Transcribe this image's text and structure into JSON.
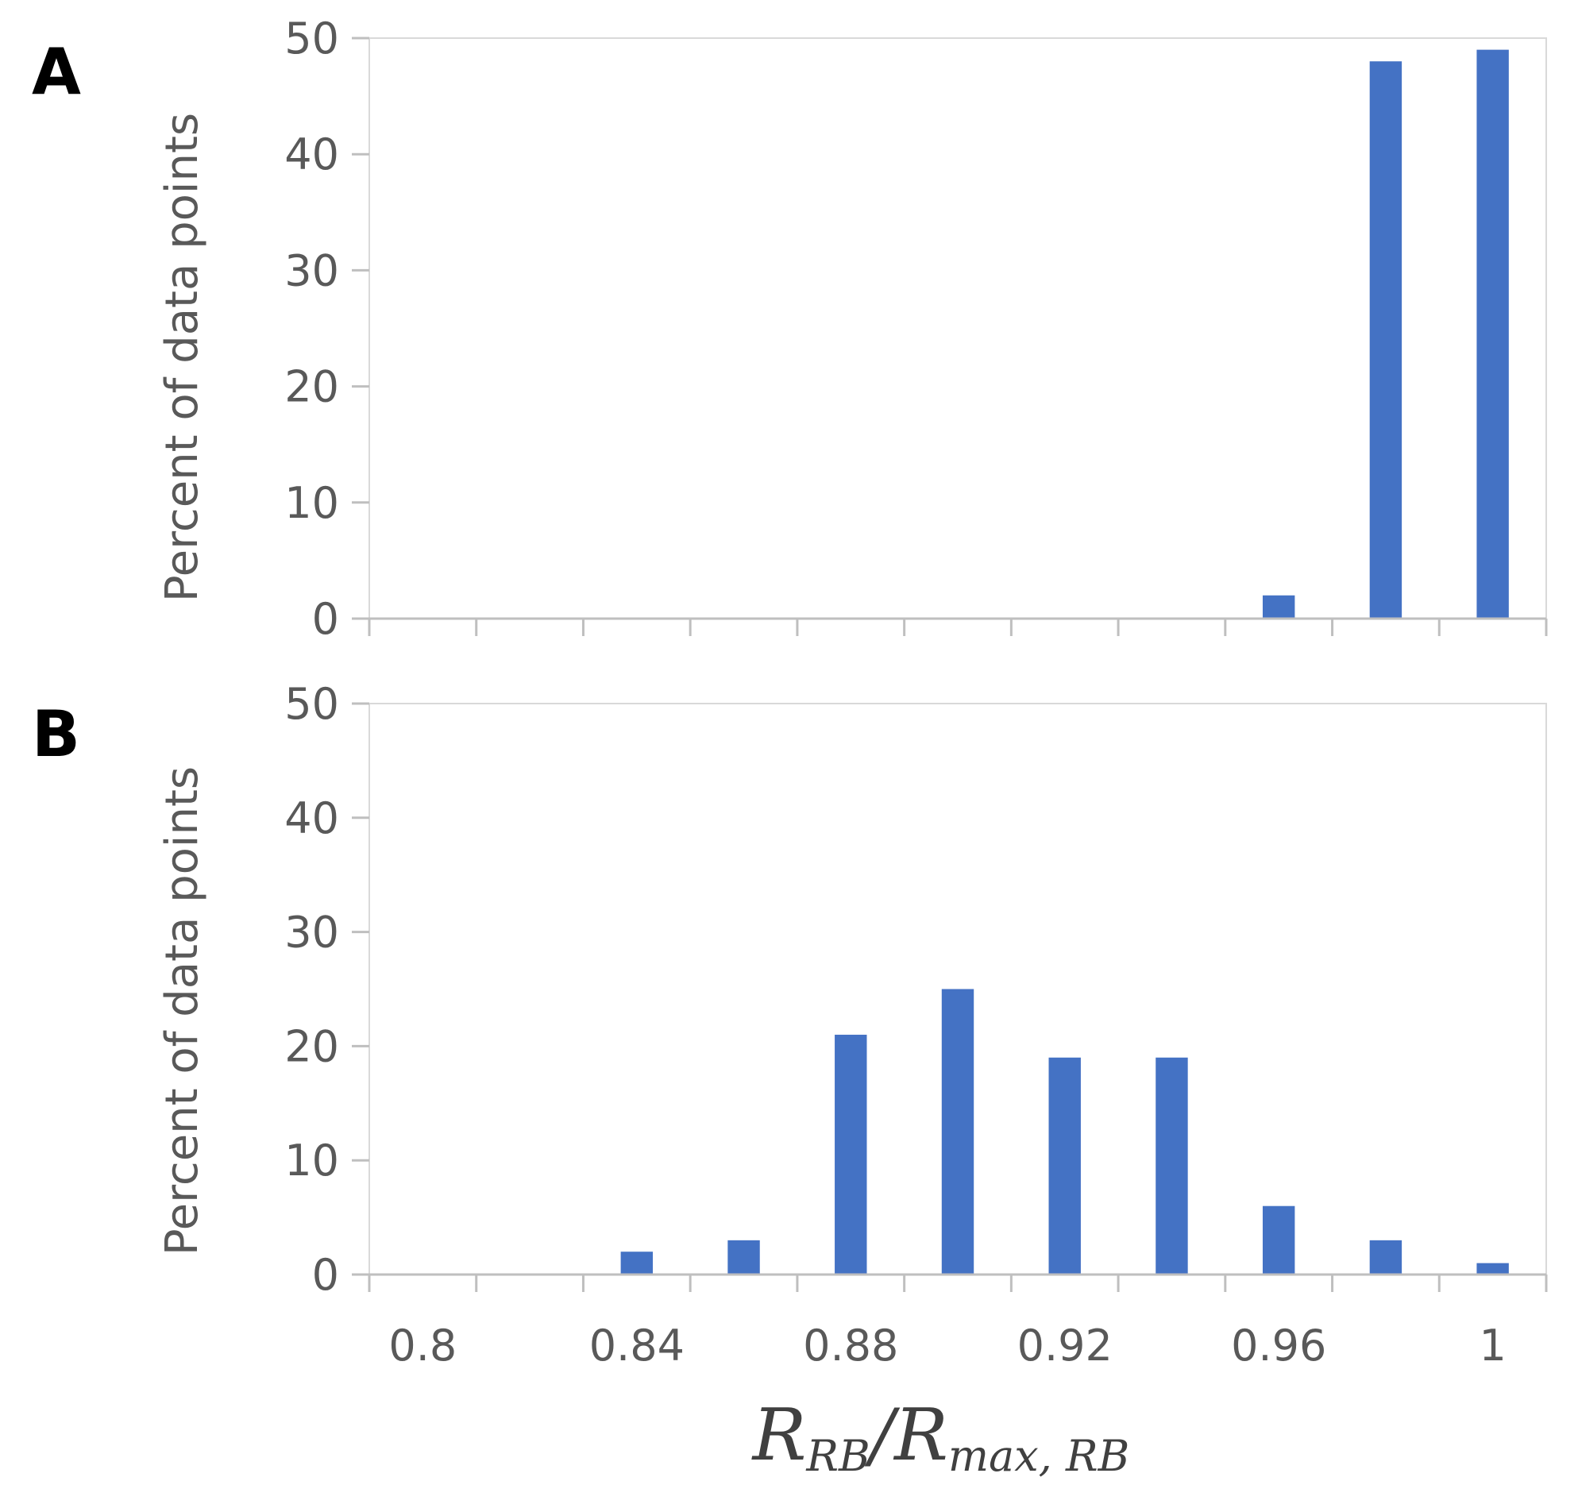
{
  "chart_data": [
    {
      "type": "bar",
      "panel_label": "A",
      "categories": [
        "0.8",
        "0.82",
        "0.84",
        "0.86",
        "0.88",
        "0.9",
        "0.92",
        "0.94",
        "0.96",
        "0.98",
        "1"
      ],
      "values": [
        0,
        0,
        0,
        0,
        0,
        0,
        0,
        0,
        2,
        48,
        49
      ],
      "ylabel": "Percent of data points",
      "ylim": [
        0,
        50
      ],
      "yticks": [
        "0",
        "10",
        "20",
        "30",
        "40",
        "50"
      ],
      "grid": false,
      "color": "#4472C4"
    },
    {
      "type": "bar",
      "panel_label": "B",
      "categories": [
        "0.8",
        "0.82",
        "0.84",
        "0.86",
        "0.88",
        "0.9",
        "0.92",
        "0.94",
        "0.96",
        "0.98",
        "1"
      ],
      "values": [
        0,
        0,
        2,
        3,
        21,
        25,
        19,
        19,
        6,
        3,
        1
      ],
      "ylabel": "Percent of data points",
      "ylim": [
        0,
        50
      ],
      "yticks": [
        "0",
        "10",
        "20",
        "30",
        "40",
        "50"
      ],
      "xticks": [
        "0.8",
        "0.84",
        "0.88",
        "0.92",
        "0.96",
        "1"
      ],
      "grid": false,
      "color": "#4472C4",
      "xlabel": {
        "r1": "R",
        "sub1": "RB",
        "slash": "/",
        "r2": "R",
        "sub2": "max, RB"
      }
    }
  ]
}
